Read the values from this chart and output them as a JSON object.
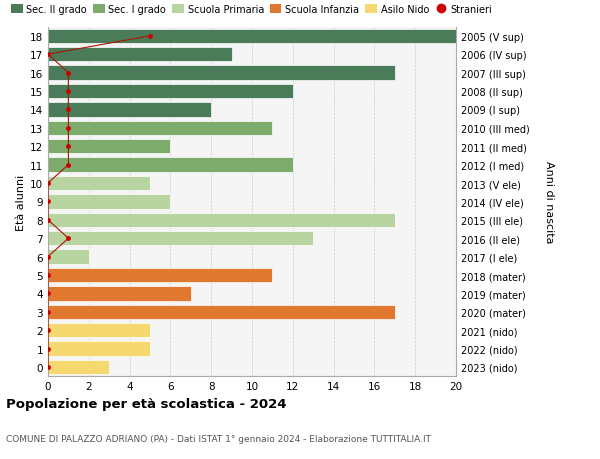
{
  "ages": [
    18,
    17,
    16,
    15,
    14,
    13,
    12,
    11,
    10,
    9,
    8,
    7,
    6,
    5,
    4,
    3,
    2,
    1,
    0
  ],
  "right_labels": [
    "2005 (V sup)",
    "2006 (IV sup)",
    "2007 (III sup)",
    "2008 (II sup)",
    "2009 (I sup)",
    "2010 (III med)",
    "2011 (II med)",
    "2012 (I med)",
    "2013 (V ele)",
    "2014 (IV ele)",
    "2015 (III ele)",
    "2016 (II ele)",
    "2017 (I ele)",
    "2018 (mater)",
    "2019 (mater)",
    "2020 (mater)",
    "2021 (nido)",
    "2022 (nido)",
    "2023 (nido)"
  ],
  "bar_values": [
    20,
    9,
    17,
    12,
    8,
    11,
    6,
    12,
    5,
    6,
    17,
    13,
    2,
    11,
    7,
    17,
    5,
    5,
    3
  ],
  "bar_colors": [
    "#4a7c59",
    "#4a7c59",
    "#4a7c59",
    "#4a7c59",
    "#4a7c59",
    "#7dab6b",
    "#7dab6b",
    "#7dab6b",
    "#b8d4a0",
    "#b8d4a0",
    "#b8d4a0",
    "#b8d4a0",
    "#b8d4a0",
    "#e07830",
    "#e07830",
    "#e07830",
    "#f5d870",
    "#f5d870",
    "#f5d870"
  ],
  "stranieri_ages": [
    18,
    17,
    16,
    15,
    14,
    13,
    12,
    11,
    10,
    9,
    8,
    7,
    6,
    5,
    4,
    3,
    2,
    1,
    0
  ],
  "stranieri_values": [
    5,
    0,
    1,
    1,
    1,
    1,
    1,
    1,
    0,
    0,
    0,
    1,
    0,
    0,
    0,
    0,
    0,
    0,
    0
  ],
  "legend_labels": [
    "Sec. II grado",
    "Sec. I grado",
    "Scuola Primaria",
    "Scuola Infanzia",
    "Asilo Nido",
    "Stranieri"
  ],
  "legend_colors": [
    "#4a7c59",
    "#7dab6b",
    "#b8d4a0",
    "#e07830",
    "#f5d870",
    "#cc0000"
  ],
  "title": "Popolazione per età scolastica - 2024",
  "subtitle": "COMUNE DI PALAZZO ADRIANO (PA) - Dati ISTAT 1° gennaio 2024 - Elaborazione TUTTITALIA.IT",
  "ylabel_left": "Età alunni",
  "ylabel_right": "Anni di nascita",
  "xlim": [
    0,
    20
  ],
  "xticks": [
    0,
    2,
    4,
    6,
    8,
    10,
    12,
    14,
    16,
    18,
    20
  ],
  "bg_color": "#f5f5f5",
  "bar_height": 0.78
}
